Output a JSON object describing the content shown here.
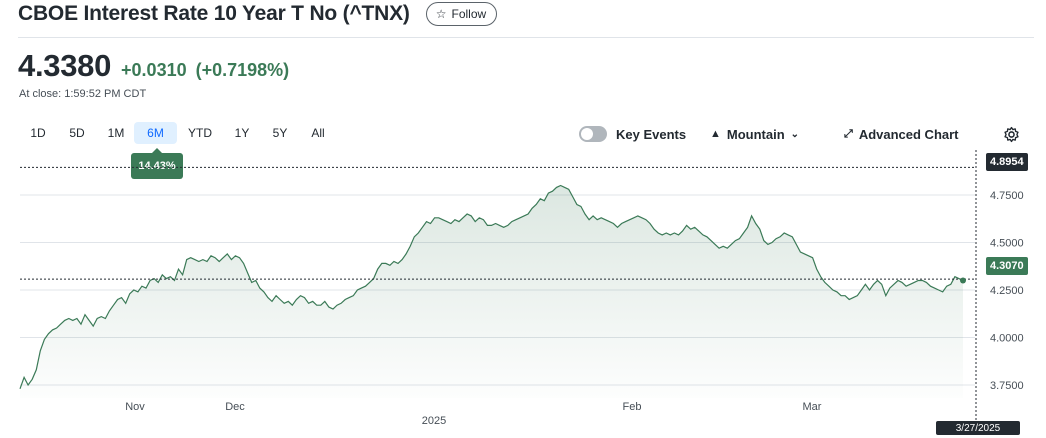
{
  "header": {
    "title": "CBOE Interest Rate 10 Year T No (^TNX)",
    "follow_label": "Follow"
  },
  "quote": {
    "price": "4.3380",
    "change": "+0.0310",
    "change_pct": "(+0.7198%)",
    "close_time": "At close: 1:59:52 PM CDT"
  },
  "ranges": [
    {
      "label": "1D",
      "active": false
    },
    {
      "label": "5D",
      "active": false
    },
    {
      "label": "1M",
      "active": false
    },
    {
      "label": "6M",
      "active": true
    },
    {
      "label": "YTD",
      "active": false
    },
    {
      "label": "1Y",
      "active": false
    },
    {
      "label": "5Y",
      "active": false
    },
    {
      "label": "All",
      "active": false
    }
  ],
  "range_tooltip": "14.43%",
  "controls": {
    "key_events": "Key Events",
    "key_events_on": false,
    "chart_type": "Mountain",
    "advanced": "Advanced Chart"
  },
  "colors": {
    "line": "#3b7a57",
    "active_range": "#0f69ff",
    "badge_dark": "#232a31"
  },
  "chart_data": {
    "type": "area",
    "ylim": [
      3.65,
      4.95
    ],
    "y_ticks": [
      {
        "label": "3.7500",
        "value": 3.75
      },
      {
        "label": "4.0000",
        "value": 4.0
      },
      {
        "label": "4.2500",
        "value": 4.25
      },
      {
        "label": "4.5000",
        "value": 4.5
      },
      {
        "label": "4.7500",
        "value": 4.75
      }
    ],
    "x_ticks": [
      "Nov",
      "Dec",
      "Feb",
      "Mar"
    ],
    "x_year": "2025",
    "high_label": "4.8954",
    "high_value": 4.8954,
    "current_label": "4.3070",
    "current_value": 4.307,
    "date_label": "3/27/2025",
    "series": [
      {
        "values": [
          3.73,
          3.79,
          3.75,
          3.78,
          3.83,
          3.93,
          3.99,
          4.02,
          4.04,
          4.05,
          4.07,
          4.09,
          4.1,
          4.09,
          4.1,
          4.07,
          4.12,
          4.09,
          4.06,
          4.1,
          4.11,
          4.1,
          4.14,
          4.17,
          4.2,
          4.21,
          4.18,
          4.23,
          4.25,
          4.24,
          4.27,
          4.26,
          4.3,
          4.31,
          4.29,
          4.33,
          4.31,
          4.32,
          4.3,
          4.36,
          4.33,
          4.41,
          4.42,
          4.41,
          4.4,
          4.41,
          4.4,
          4.43,
          4.42,
          4.4,
          4.42,
          4.44,
          4.41,
          4.43,
          4.42,
          4.39,
          4.34,
          4.29,
          4.3,
          4.26,
          4.24,
          4.21,
          4.19,
          4.22,
          4.2,
          4.18,
          4.19,
          4.17,
          4.2,
          4.22,
          4.21,
          4.18,
          4.19,
          4.17,
          4.17,
          4.19,
          4.16,
          4.15,
          4.17,
          4.18,
          4.2,
          4.21,
          4.22,
          4.25,
          4.26,
          4.27,
          4.29,
          4.31,
          4.36,
          4.39,
          4.39,
          4.38,
          4.4,
          4.39,
          4.41,
          4.44,
          4.48,
          4.53,
          4.55,
          4.58,
          4.61,
          4.6,
          4.63,
          4.63,
          4.62,
          4.61,
          4.6,
          4.62,
          4.61,
          4.63,
          4.65,
          4.64,
          4.61,
          4.63,
          4.62,
          4.59,
          4.59,
          4.6,
          4.59,
          4.58,
          4.59,
          4.61,
          4.62,
          4.63,
          4.64,
          4.65,
          4.68,
          4.7,
          4.73,
          4.72,
          4.76,
          4.77,
          4.79,
          4.8,
          4.79,
          4.78,
          4.74,
          4.7,
          4.69,
          4.65,
          4.62,
          4.64,
          4.62,
          4.63,
          4.62,
          4.61,
          4.6,
          4.58,
          4.6,
          4.61,
          4.62,
          4.63,
          4.64,
          4.63,
          4.62,
          4.6,
          4.57,
          4.55,
          4.54,
          4.55,
          4.54,
          4.55,
          4.54,
          4.56,
          4.59,
          4.57,
          4.58,
          4.56,
          4.54,
          4.53,
          4.51,
          4.49,
          4.47,
          4.48,
          4.47,
          4.49,
          4.51,
          4.52,
          4.55,
          4.58,
          4.64,
          4.6,
          4.57,
          4.51,
          4.49,
          4.5,
          4.52,
          4.53,
          4.55,
          4.54,
          4.53,
          4.49,
          4.45,
          4.44,
          4.43,
          4.42,
          4.36,
          4.32,
          4.29,
          4.27,
          4.25,
          4.24,
          4.22,
          4.22,
          4.2,
          4.21,
          4.22,
          4.25,
          4.28,
          4.25,
          4.28,
          4.3,
          4.28,
          4.22,
          4.26,
          4.28,
          4.3,
          4.29,
          4.27,
          4.28,
          4.29,
          4.3,
          4.3,
          4.29,
          4.27,
          4.26,
          4.25,
          4.24,
          4.27,
          4.28,
          4.32,
          4.31,
          4.3
        ]
      }
    ]
  }
}
